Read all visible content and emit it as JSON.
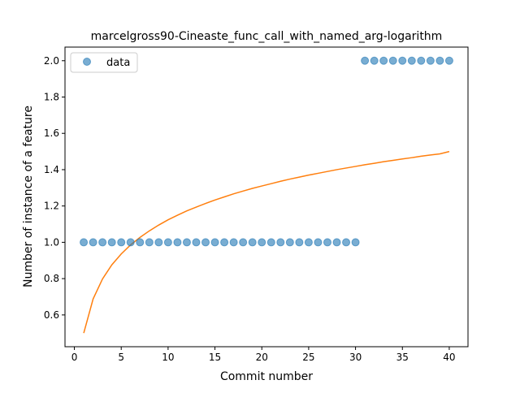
{
  "chart_data": {
    "type": "scatter",
    "title": "marcelgross90-Cineaste_func_call_with_named_arg-logarithm",
    "xlabel": "Commit number",
    "ylabel": "Number of instance of a feature",
    "xlim": [
      -1,
      42
    ],
    "ylim": [
      0.425,
      2.075
    ],
    "xticks": [
      0,
      5,
      10,
      15,
      20,
      25,
      30,
      35,
      40
    ],
    "yticks": [
      0.6,
      0.8,
      1.0,
      1.2,
      1.4,
      1.6,
      1.8,
      2.0
    ],
    "xtick_labels": [
      "0",
      "5",
      "10",
      "15",
      "20",
      "25",
      "30",
      "35",
      "40"
    ],
    "ytick_labels": [
      "0.6",
      "0.8",
      "1.0",
      "1.2",
      "1.4",
      "1.6",
      "1.8",
      "2.0"
    ],
    "legend": {
      "position": "top-left",
      "entries": [
        "data"
      ]
    },
    "grid": false,
    "series": [
      {
        "name": "data",
        "kind": "scatter",
        "color": "#1f77b4",
        "x": [
          1,
          2,
          3,
          4,
          5,
          6,
          7,
          8,
          9,
          10,
          11,
          12,
          13,
          14,
          15,
          16,
          17,
          18,
          19,
          20,
          21,
          22,
          23,
          24,
          25,
          26,
          27,
          28,
          29,
          30,
          31,
          32,
          33,
          34,
          35,
          36,
          37,
          38,
          39,
          40
        ],
        "y": [
          1,
          1,
          1,
          1,
          1,
          1,
          1,
          1,
          1,
          1,
          1,
          1,
          1,
          1,
          1,
          1,
          1,
          1,
          1,
          1,
          1,
          1,
          1,
          1,
          1,
          1,
          1,
          1,
          1,
          1,
          2,
          2,
          2,
          2,
          2,
          2,
          2,
          2,
          2,
          2
        ]
      },
      {
        "kind": "line",
        "color": "#ff7f0e",
        "x": [
          1,
          2,
          3,
          4,
          5,
          6,
          7,
          8,
          9,
          10,
          11,
          12,
          13,
          14,
          15,
          16,
          17,
          18,
          19,
          20,
          21,
          22,
          23,
          24,
          25,
          26,
          27,
          28,
          29,
          30,
          31,
          32,
          33,
          34,
          35,
          36,
          37,
          38,
          39,
          40
        ],
        "y": [
          0.5,
          0.688,
          0.798,
          0.876,
          0.936,
          0.986,
          1.027,
          1.063,
          1.095,
          1.124,
          1.149,
          1.173,
          1.194,
          1.214,
          1.233,
          1.25,
          1.267,
          1.282,
          1.297,
          1.31,
          1.323,
          1.336,
          1.348,
          1.359,
          1.37,
          1.38,
          1.39,
          1.4,
          1.409,
          1.418,
          1.427,
          1.435,
          1.444,
          1.451,
          1.459,
          1.466,
          1.474,
          1.481,
          1.487,
          1.5
        ]
      }
    ]
  }
}
